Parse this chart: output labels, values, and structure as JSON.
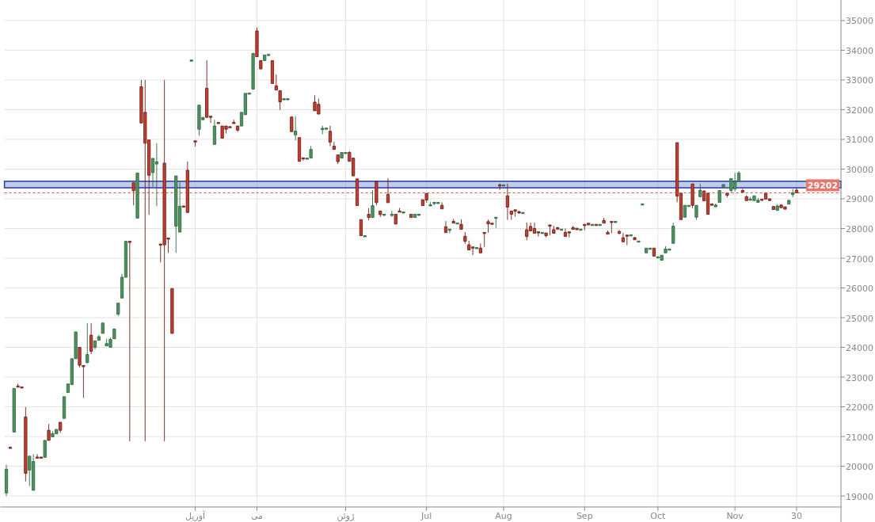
{
  "chart_data": {
    "type": "candlestick",
    "categories": [
      null,
      null,
      null,
      null,
      null,
      null,
      null,
      null,
      null,
      null,
      null,
      null,
      null,
      null,
      null,
      null,
      null,
      null,
      null,
      null,
      null,
      null,
      null,
      null,
      null,
      null,
      null,
      null,
      null,
      null,
      null,
      null,
      null,
      null,
      null,
      null,
      null,
      null,
      null,
      null,
      null,
      null,
      null,
      null,
      null,
      null,
      null,
      null,
      null,
      "آوریل",
      null,
      null,
      null,
      null,
      null,
      null,
      null,
      null,
      null,
      null,
      null,
      null,
      null,
      null,
      null,
      "می",
      null,
      null,
      null,
      null,
      null,
      null,
      null,
      null,
      null,
      null,
      null,
      null,
      null,
      null,
      null,
      null,
      null,
      null,
      null,
      null,
      null,
      null,
      "ژوئن",
      null,
      null,
      null,
      null,
      null,
      null,
      null,
      null,
      null,
      null,
      null,
      null,
      null,
      null,
      null,
      null,
      null,
      null,
      null,
      null,
      "Jul",
      null,
      null,
      null,
      null,
      null,
      null,
      null,
      null,
      null,
      null,
      null,
      null,
      null,
      null,
      null,
      null,
      null,
      null,
      null,
      "Aug",
      null,
      null,
      null,
      null,
      null,
      null,
      null,
      null,
      null,
      null,
      null,
      null,
      null,
      null,
      null,
      null,
      null,
      null,
      null,
      null,
      "Sep",
      null,
      null,
      null,
      null,
      null,
      null,
      null,
      null,
      null,
      null,
      null,
      null,
      null,
      null,
      null,
      null,
      null,
      null,
      "Oct",
      null,
      null,
      null,
      null,
      null,
      null,
      null,
      null,
      null,
      null,
      null,
      null,
      null,
      null,
      null,
      null,
      null,
      null,
      null,
      "Nov",
      null,
      null,
      null,
      null,
      null,
      null,
      null,
      null,
      null,
      null,
      null,
      null,
      null,
      null,
      null,
      "30",
      null,
      null,
      null,
      null,
      null,
      null,
      null,
      null,
      null,
      null,
      null
    ],
    "ohlc": [
      [
        19100,
        20050,
        19000,
        19900
      ],
      [
        20640,
        20640,
        20620,
        20620
      ],
      [
        21150,
        22620,
        21150,
        22620
      ],
      [
        22700,
        22780,
        22680,
        22680
      ],
      [
        22670,
        22670,
        22660,
        22660
      ],
      [
        21660,
        21990,
        19490,
        19760
      ],
      [
        19870,
        20340,
        19330,
        20340
      ],
      [
        19190,
        20410,
        19190,
        20160
      ],
      [
        20310,
        20410,
        20290,
        20290
      ],
      [
        20310,
        20310,
        20300,
        20300
      ],
      [
        20300,
        20870,
        20300,
        20870
      ],
      [
        21210,
        21420,
        20870,
        20870
      ],
      [
        20990,
        21180,
        20990,
        21100
      ],
      [
        21090,
        21240,
        21090,
        21240
      ],
      [
        21480,
        21480,
        21120,
        21210
      ],
      [
        21610,
        22340,
        21610,
        22340
      ],
      [
        22480,
        22770,
        22480,
        22770
      ],
      [
        22750,
        23620,
        22750,
        23620
      ],
      [
        23620,
        24520,
        23620,
        24520
      ],
      [
        24000,
        24000,
        23330,
        23400
      ],
      [
        23390,
        23390,
        22300,
        23380
      ],
      [
        23490,
        24820,
        23460,
        23760
      ],
      [
        24410,
        24820,
        23780,
        23870
      ],
      [
        24000,
        24230,
        23930,
        24220
      ],
      [
        24240,
        24420,
        24240,
        24360
      ],
      [
        24470,
        24820,
        24470,
        24820
      ],
      [
        24050,
        24290,
        24050,
        24130
      ],
      [
        24000,
        24330,
        24000,
        24270
      ],
      [
        24290,
        24620,
        24290,
        24620
      ],
      [
        25120,
        25490,
        25050,
        25490
      ],
      [
        25660,
        26470,
        25660,
        26360
      ],
      [
        26360,
        27570,
        26360,
        27570
      ],
      [
        27570,
        27580,
        20840,
        27550
      ],
      [
        29540,
        29540,
        28780,
        29270
      ],
      [
        28350,
        29870,
        28350,
        29870
      ],
      [
        32770,
        33000,
        31550,
        31550
      ],
      [
        31910,
        33000,
        20840,
        30870
      ],
      [
        30980,
        30980,
        28460,
        29790
      ],
      [
        29880,
        30360,
        29400,
        30360
      ],
      [
        30170,
        30870,
        28750,
        30250
      ],
      [
        27480,
        27480,
        26860,
        27460
      ],
      [
        30200,
        33000,
        20840,
        27450
      ],
      [
        27680,
        27680,
        27180,
        27660
      ],
      [
        25980,
        25980,
        24470,
        24470
      ],
      [
        28080,
        29770,
        27190,
        29770
      ],
      [
        27880,
        29570,
        27880,
        28750
      ],
      [
        28760,
        28760,
        28740,
        28740
      ],
      [
        29960,
        30250,
        28540,
        28540
      ],
      [
        33660,
        33670,
        33660,
        33670
      ],
      [
        30950,
        30950,
        30760,
        30930
      ],
      [
        31340,
        32150,
        31120,
        32150
      ],
      [
        31660,
        31740,
        31660,
        31740
      ],
      [
        32720,
        33670,
        31740,
        31740
      ],
      [
        31780,
        31780,
        31550,
        31770
      ],
      [
        30830,
        31660,
        30830,
        31450
      ],
      [
        31570,
        31570,
        31560,
        31560
      ],
      [
        31450,
        31450,
        31040,
        31040
      ],
      [
        31450,
        31450,
        31200,
        31340
      ],
      [
        31430,
        31430,
        31420,
        31420
      ],
      [
        31570,
        31660,
        31560,
        31560
      ],
      [
        31450,
        31450,
        31250,
        31310
      ],
      [
        31450,
        31910,
        31450,
        31910
      ],
      [
        31830,
        32550,
        31830,
        32550
      ],
      [
        32550,
        32560,
        32550,
        32560
      ],
      [
        32690,
        33890,
        32690,
        33890
      ],
      [
        34650,
        34760,
        33780,
        33780
      ],
      [
        33650,
        33650,
        33370,
        33370
      ],
      [
        33650,
        33840,
        33650,
        33840
      ],
      [
        33850,
        33860,
        33850,
        33860
      ],
      [
        33650,
        33650,
        32880,
        32880
      ],
      [
        32800,
        33190,
        32660,
        32660
      ],
      [
        32640,
        32640,
        31990,
        32260
      ],
      [
        32360,
        32370,
        32360,
        32370
      ],
      [
        32360,
        32370,
        32360,
        32370
      ],
      [
        31750,
        31780,
        31260,
        31260
      ],
      [
        31150,
        31780,
        30970,
        31280
      ],
      [
        31060,
        31060,
        30260,
        30260
      ],
      [
        30380,
        30380,
        30290,
        30370
      ],
      [
        30360,
        30370,
        30360,
        30370
      ],
      [
        30370,
        30780,
        30370,
        30660
      ],
      [
        32250,
        32480,
        31960,
        31960
      ],
      [
        32180,
        32370,
        31850,
        31850
      ],
      [
        31360,
        31460,
        31170,
        31370
      ],
      [
        31370,
        31380,
        31370,
        31380
      ],
      [
        31270,
        31460,
        30770,
        30910
      ],
      [
        30770,
        30920,
        30660,
        30660
      ],
      [
        30480,
        30480,
        30170,
        30250
      ],
      [
        30370,
        30570,
        30370,
        30560
      ],
      [
        30550,
        30560,
        30550,
        30560
      ],
      [
        30560,
        30600,
        30260,
        30260
      ],
      [
        30370,
        30370,
        29770,
        29770
      ],
      [
        29670,
        29670,
        28770,
        28770
      ],
      [
        28300,
        28300,
        27760,
        27760
      ],
      [
        27750,
        27760,
        27750,
        27760
      ],
      [
        28480,
        28690,
        28280,
        28370
      ],
      [
        28370,
        29290,
        28370,
        28770
      ],
      [
        29570,
        29570,
        28780,
        28870
      ],
      [
        28590,
        28590,
        28390,
        28470
      ],
      [
        28470,
        28480,
        28470,
        28480
      ],
      [
        29150,
        29690,
        28870,
        28870
      ],
      [
        28470,
        28590,
        28390,
        28480
      ],
      [
        28480,
        28480,
        28150,
        28150
      ],
      [
        28590,
        28690,
        28550,
        28550
      ],
      [
        28550,
        28560,
        28550,
        28560
      ],
      null,
      [
        28480,
        28480,
        28370,
        28370
      ],
      [
        28370,
        28480,
        28370,
        28480
      ],
      [
        28470,
        28480,
        28470,
        28480
      ],
      [
        28970,
        28970,
        28770,
        28770
      ],
      [
        29180,
        29180,
        28870,
        28960
      ],
      [
        28790,
        28890,
        28790,
        28800
      ],
      [
        28870,
        28880,
        28790,
        28880
      ],
      [
        28870,
        28880,
        28870,
        28880
      ],
      [
        28780,
        28880,
        28660,
        28660
      ],
      [
        28060,
        28250,
        27860,
        27860
      ],
      [
        27970,
        27980,
        27840,
        27980
      ],
      [
        28240,
        28320,
        28180,
        28180
      ],
      [
        28180,
        28190,
        28180,
        28190
      ],
      [
        28140,
        28310,
        27970,
        27970
      ],
      [
        27740,
        27880,
        27490,
        27570
      ],
      [
        27450,
        27590,
        27280,
        27280
      ],
      [
        27380,
        27380,
        27100,
        27370
      ],
      [
        27350,
        27360,
        27350,
        27360
      ],
      [
        27340,
        27500,
        27180,
        27180
      ],
      [
        27870,
        27870,
        27380,
        27860
      ],
      [
        28230,
        28300,
        27860,
        28160
      ],
      [
        28180,
        28180,
        28170,
        28170
      ],
      [
        28370,
        28380,
        28020,
        28380
      ],
      [
        29470,
        29510,
        29300,
        29460
      ],
      [
        29460,
        29470,
        29460,
        29470
      ],
      [
        29100,
        29510,
        28290,
        28720
      ],
      [
        28590,
        28590,
        28290,
        28480
      ],
      [
        28630,
        28630,
        28400,
        28580
      ],
      [
        28570,
        28590,
        28500,
        28520
      ],
      [
        28530,
        28540,
        28530,
        28540
      ],
      [
        27960,
        28200,
        27600,
        27730
      ],
      [
        28070,
        28200,
        27920,
        27920
      ],
      [
        28000,
        28200,
        27840,
        27840
      ],
      [
        27890,
        27890,
        27730,
        27880
      ],
      [
        27860,
        27870,
        27860,
        27870
      ],
      [
        27850,
        27850,
        27700,
        27760
      ],
      [
        28120,
        28120,
        27780,
        28080
      ],
      [
        27960,
        28090,
        27840,
        27840
      ],
      [
        28030,
        28050,
        27950,
        27980
      ],
      [
        27970,
        27980,
        27970,
        27980
      ],
      [
        27870,
        28000,
        27730,
        27730
      ],
      [
        27890,
        27890,
        27700,
        27880
      ],
      [
        28030,
        28090,
        27970,
        27970
      ],
      [
        28010,
        28010,
        27960,
        27960
      ],
      [
        27970,
        27980,
        27970,
        27980
      ],
      [
        28140,
        28140,
        27940,
        28130
      ],
      [
        28180,
        28180,
        28120,
        28120
      ],
      [
        28130,
        28140,
        28130,
        28140
      ],
      [
        28140,
        28140,
        28130,
        28130
      ],
      [
        28130,
        28140,
        28130,
        28140
      ],
      [
        28270,
        28360,
        28180,
        28180
      ],
      [
        27870,
        27930,
        27810,
        27810
      ],
      [
        28240,
        28240,
        27840,
        28230
      ],
      [
        28230,
        28240,
        28230,
        28240
      ],
      [
        27900,
        27950,
        27790,
        27840
      ],
      [
        27690,
        27850,
        27550,
        27550
      ],
      [
        27780,
        27780,
        27440,
        27770
      ],
      [
        27780,
        27790,
        27780,
        27790
      ],
      [
        27690,
        27720,
        27620,
        27620
      ],
      [
        27570,
        27580,
        27570,
        27580
      ],
      [
        28820,
        28830,
        28820,
        28830
      ],
      [
        27180,
        27340,
        27180,
        27340
      ],
      [
        27330,
        27340,
        27330,
        27340
      ],
      [
        27340,
        27340,
        27070,
        27070
      ],
      [
        27040,
        27050,
        27040,
        27050
      ],
      [
        26930,
        27100,
        26930,
        27100
      ],
      [
        27180,
        27400,
        27180,
        27310
      ],
      [
        27300,
        27310,
        27300,
        27310
      ],
      [
        27500,
        28200,
        27500,
        28080
      ],
      [
        30890,
        30890,
        28880,
        29090
      ],
      [
        29190,
        29190,
        28300,
        28300
      ],
      [
        28380,
        28780,
        28380,
        28780
      ],
      [
        28770,
        28780,
        28770,
        28780
      ],
      [
        29500,
        29500,
        28690,
        28780
      ],
      [
        28380,
        28780,
        28290,
        28780
      ],
      [
        29070,
        29510,
        29070,
        29290
      ],
      [
        29260,
        29290,
        28930,
        28930
      ],
      [
        29190,
        29190,
        28480,
        28480
      ],
      [
        28830,
        28830,
        28780,
        28780
      ],
      [
        28730,
        28840,
        28730,
        28790
      ],
      [
        28880,
        29290,
        28880,
        29280
      ],
      [
        29410,
        29480,
        29410,
        29480
      ],
      [
        29190,
        29190,
        29050,
        29120
      ],
      [
        29280,
        29680,
        29200,
        29680
      ],
      [
        29330,
        29870,
        29250,
        29580
      ],
      [
        29580,
        29930,
        29580,
        29870
      ],
      [
        29280,
        29330,
        29220,
        29220
      ],
      [
        29070,
        29120,
        28940,
        28940
      ],
      [
        28980,
        29060,
        28980,
        28990
      ],
      [
        28940,
        29100,
        28940,
        29100
      ],
      [
        28880,
        29030,
        28880,
        28950
      ],
      [
        28990,
        28990,
        28920,
        28980
      ],
      [
        29190,
        29190,
        28990,
        28990
      ],
      [
        29000,
        29000,
        28940,
        28940
      ],
      [
        28740,
        28760,
        28640,
        28640
      ],
      [
        28610,
        28820,
        28610,
        28760
      ],
      [
        28790,
        28810,
        28700,
        28700
      ],
      [
        28730,
        28730,
        28650,
        28650
      ],
      [
        28820,
        28950,
        28820,
        28950
      ],
      [
        29140,
        29330,
        29050,
        29200
      ],
      [
        29290,
        29350,
        29190,
        29200
      ],
      null,
      null,
      null,
      null,
      null,
      null,
      null,
      null,
      null,
      null,
      null
    ],
    "ylim": [
      18630,
      35690
    ],
    "yticks": [
      19000,
      20000,
      21000,
      22000,
      23000,
      24000,
      25000,
      26000,
      27000,
      28000,
      29000,
      30000,
      31000,
      32000,
      33000,
      34000,
      35000
    ],
    "grid": true,
    "bands": [
      {
        "axis": "y",
        "from": 29370,
        "to": 29590,
        "color": "#8fa0d8"
      }
    ],
    "ref_lines": [
      {
        "axis": "y",
        "value": 29202,
        "label": "29202",
        "color": "#d9473b",
        "line_style": "dashed"
      }
    ]
  }
}
